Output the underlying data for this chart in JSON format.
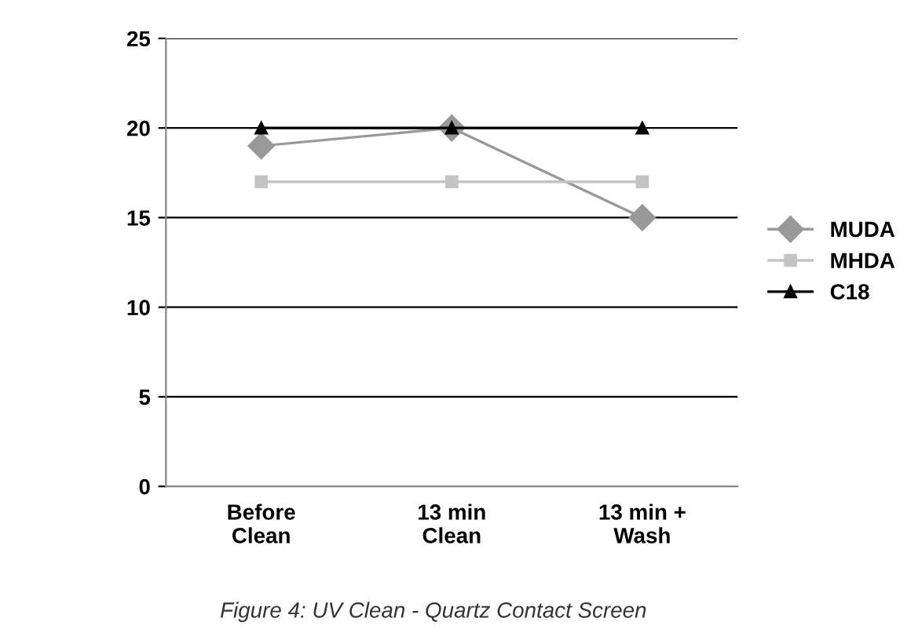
{
  "chart_data": {
    "type": "line",
    "categories": [
      "Before\nClean",
      "13 min\nClean",
      "13 min +\nWash"
    ],
    "series": [
      {
        "name": "MUDA",
        "color": "#999999",
        "marker": "diamond",
        "values": [
          19,
          20,
          15
        ]
      },
      {
        "name": "MHDA",
        "color": "#c4c4c4",
        "marker": "square",
        "values": [
          17,
          17,
          17
        ]
      },
      {
        "name": "C18",
        "color": "#000000",
        "marker": "triangle",
        "values": [
          20,
          20,
          20
        ]
      }
    ],
    "ylim": [
      0,
      25
    ],
    "yticks": [
      0,
      5,
      10,
      15,
      20,
      25
    ],
    "grid": "y",
    "legend": "right",
    "annotations": [
      "Figure 4: UV Clean - Quartz Contact Screen"
    ]
  }
}
